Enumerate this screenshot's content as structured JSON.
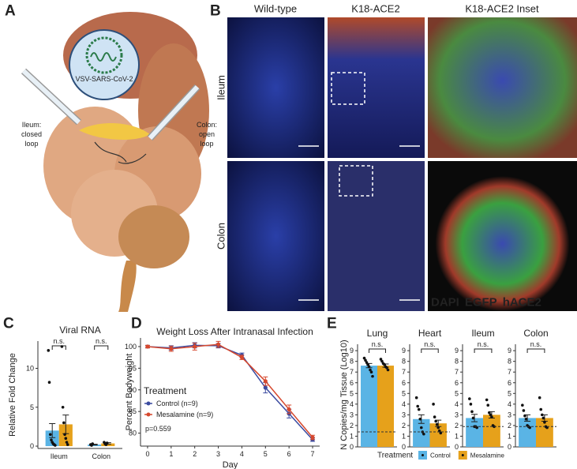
{
  "panel_labels": [
    "A",
    "B",
    "C",
    "D",
    "E"
  ],
  "panel_a": {
    "virus": "VSV-SARS-CoV-2",
    "ileum_label": [
      "Ileum:",
      "closed",
      "loop"
    ],
    "colon_label": [
      "Colon:",
      "open",
      "loop"
    ]
  },
  "panel_b": {
    "columns": [
      "Wild-type",
      "K18-ACE2",
      "K18-ACE2 Inset"
    ],
    "rows": [
      "Ileum",
      "Colon"
    ],
    "stains": [
      {
        "name": "DAPI",
        "color": "#1e88e5"
      },
      {
        "name": "EGFP",
        "color": "#2fbf4f"
      },
      {
        "name": "hACE2",
        "color": "#e53935"
      }
    ]
  },
  "chart_data": [
    {
      "type": "bar",
      "title": "Viral RNA",
      "ylabel": "Relative Fold Change",
      "categories": [
        "Ileum",
        "Colon"
      ],
      "ylim": [
        -0.3,
        13.5
      ],
      "yticks": [
        0,
        5,
        10
      ],
      "significance": [
        "n.s.",
        "n.s."
      ],
      "series": [
        {
          "color": "#5ab4e5",
          "values": [
            2.0,
            0.2
          ],
          "errors": [
            0.9,
            0.05
          ],
          "points": [
            [
              12.3,
              8.2,
              1.5,
              0.8,
              0.5,
              0.3,
              0.2,
              0.1
            ],
            [
              0.2,
              0.1,
              0.3
            ]
          ]
        },
        {
          "color": "#e6a11b",
          "values": [
            2.8,
            0.35
          ],
          "errors": [
            1.2,
            0.1
          ],
          "points": [
            [
              12.8,
              5.0,
              3.0,
              1.5,
              1.0,
              0.5,
              0.2
            ],
            [
              0.5,
              0.3,
              0.2,
              0.4
            ]
          ]
        }
      ]
    },
    {
      "type": "line",
      "title": "Weight Loss After Intranasal Infection",
      "xlabel": "Day",
      "ylabel": "Percent Bodyweight",
      "x": [
        0,
        1,
        2,
        3,
        4,
        5,
        6,
        7
      ],
      "xlim": [
        -0.3,
        7.3
      ],
      "xticks": [
        0,
        1,
        2,
        3,
        4,
        5,
        6,
        7
      ],
      "ylim": [
        77,
        102
      ],
      "yticks": [
        80,
        85,
        90,
        95,
        100
      ],
      "legend_title": "Treatment",
      "note": "p=0.559",
      "series": [
        {
          "name": "Control (n=9)",
          "color": "#3b4ba0",
          "values": [
            100,
            99.7,
            100.3,
            100.2,
            98,
            90.5,
            84.5,
            78.5
          ],
          "errors": [
            0.3,
            0.5,
            0.6,
            0.5,
            0.5,
            1.2,
            1.0,
            0.4
          ]
        },
        {
          "name": "Mesalamine (n=9)",
          "color": "#d6482e",
          "values": [
            100,
            99.5,
            100,
            100.5,
            97.5,
            92,
            85.5,
            79
          ],
          "errors": [
            0.3,
            0.6,
            0.8,
            0.7,
            0.5,
            1.0,
            1.0,
            0.5
          ]
        }
      ]
    },
    {
      "type": "bar",
      "title": "Lung",
      "ylabel": "N Copies/mg Tissue (Log10)",
      "ylim": [
        0,
        9.6
      ],
      "yticks": [
        0,
        1,
        2,
        3,
        4,
        5,
        6,
        7,
        8,
        9
      ],
      "threshold": 1.4,
      "significance": [
        "n.s."
      ],
      "legend_title": "Treatment",
      "series": [
        {
          "name": "Control",
          "color": "#5ab4e5",
          "values": [
            7.6
          ],
          "errors": [
            0.2
          ],
          "points": [
            [
              8.3,
              8.1,
              7.9,
              7.7,
              7.5,
              7.2,
              7.0,
              6.6
            ]
          ]
        },
        {
          "name": "Mesalamine",
          "color": "#e6a11b",
          "values": [
            7.6
          ],
          "errors": [
            0.15
          ],
          "points": [
            [
              8.2,
              8.0,
              7.8,
              7.7,
              7.5,
              7.4,
              7.2
            ]
          ]
        }
      ]
    },
    {
      "type": "bar",
      "title": "Heart",
      "ylim": [
        0,
        9.6
      ],
      "yticks": [
        0,
        1,
        2,
        3,
        4,
        5,
        6,
        7,
        8,
        9
      ],
      "threshold": 1.4,
      "significance": [
        "n.s."
      ],
      "series": [
        {
          "color": "#5ab4e5",
          "values": [
            2.6
          ],
          "errors": [
            0.4
          ],
          "points": [
            [
              4.6,
              3.8,
              3.5,
              2.6,
              1.8,
              1.4,
              1.2
            ]
          ]
        },
        {
          "color": "#e6a11b",
          "values": [
            2.2
          ],
          "errors": [
            0.3
          ],
          "points": [
            [
              4.0,
              2.8,
              2.4,
              2.1,
              1.8,
              1.5,
              1.3
            ]
          ]
        }
      ]
    },
    {
      "type": "bar",
      "title": "Ileum",
      "ylim": [
        0,
        9.6
      ],
      "yticks": [
        0,
        1,
        2,
        3,
        4,
        5,
        6,
        7,
        8,
        9
      ],
      "threshold": 1.9,
      "significance": [
        "n.s."
      ],
      "series": [
        {
          "color": "#5ab4e5",
          "values": [
            2.7
          ],
          "errors": [
            0.35
          ],
          "points": [
            [
              4.5,
              4.0,
              3.3,
              2.7,
              1.9,
              1.9,
              1.8
            ]
          ]
        },
        {
          "color": "#e6a11b",
          "values": [
            3.0
          ],
          "errors": [
            0.3
          ],
          "points": [
            [
              4.4,
              3.9,
              3.2,
              3.0,
              2.8,
              2.0,
              1.9
            ]
          ]
        }
      ]
    },
    {
      "type": "bar",
      "title": "Colon",
      "ylim": [
        0,
        9.6
      ],
      "yticks": [
        0,
        1,
        2,
        3,
        4,
        5,
        6,
        7,
        8,
        9
      ],
      "threshold": 1.9,
      "significance": [
        "n.s."
      ],
      "series": [
        {
          "color": "#5ab4e5",
          "values": [
            2.7
          ],
          "errors": [
            0.3
          ],
          "points": [
            [
              3.9,
              3.4,
              2.9,
              2.6,
              2.0,
              1.9,
              1.8
            ]
          ]
        },
        {
          "color": "#e6a11b",
          "values": [
            2.7
          ],
          "errors": [
            0.3
          ],
          "points": [
            [
              4.6,
              3.5,
              3.0,
              2.7,
              2.3,
              1.9,
              1.8
            ]
          ]
        }
      ]
    }
  ]
}
